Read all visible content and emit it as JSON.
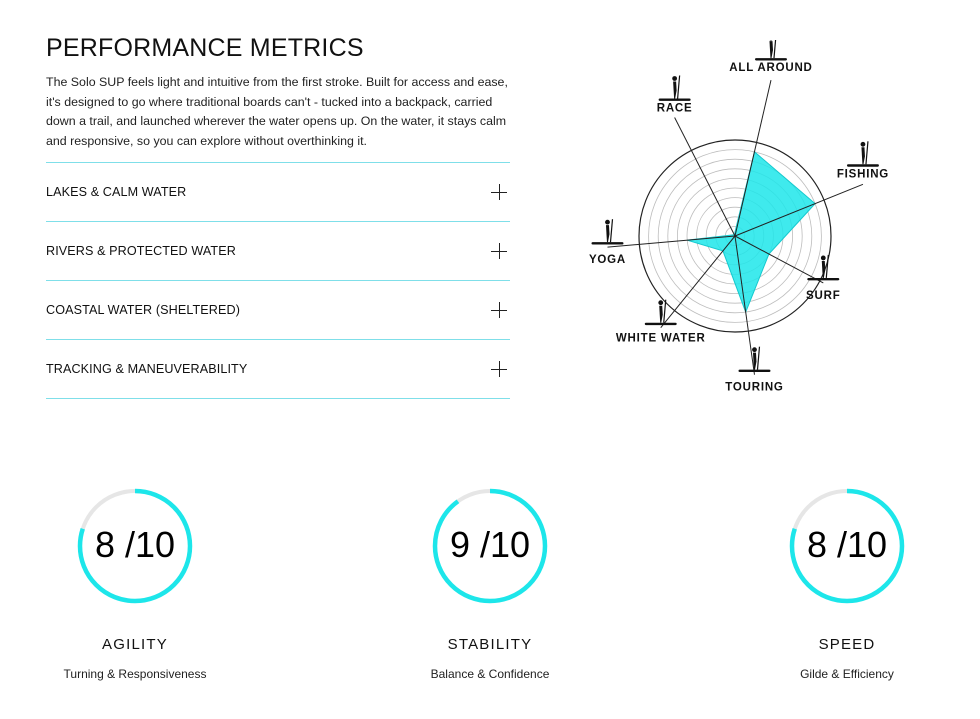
{
  "section": {
    "title": "PERFORMANCE METRICS",
    "intro": "The Solo SUP feels light and intuitive from the first stroke. Built for access and ease, it's designed to go where traditional boards can't - tucked into a backpack, carried down a trail, and launched wherever the water opens up. On the water, it stays calm and responsive, so you can explore without overthinking it."
  },
  "accordion": {
    "items": [
      {
        "label": "LAKES & CALM WATER"
      },
      {
        "label": "RIVERS & PROTECTED WATER"
      },
      {
        "label": "COASTAL WATER (SHELTERED)"
      },
      {
        "label": "TRACKING & MANEUVERABILITY"
      }
    ]
  },
  "radar": {
    "max": 10,
    "accent": "#1de6ea",
    "axes": [
      {
        "label": "ALL AROUND",
        "value": 9,
        "icon": "all-around-paddler-icon"
      },
      {
        "label": "FISHING",
        "value": 9,
        "icon": "fishing-icon"
      },
      {
        "label": "SURF",
        "value": 4,
        "icon": "surf-icon"
      },
      {
        "label": "TOURING",
        "value": 8,
        "icon": "touring-paddler-icon"
      },
      {
        "label": "WHITE WATER",
        "value": 2,
        "icon": "white-water-icon"
      },
      {
        "label": "YOGA",
        "value": 5,
        "icon": "yoga-icon"
      },
      {
        "label": "RACE",
        "value": 0,
        "icon": "race-paddler-icon"
      }
    ]
  },
  "metrics": [
    {
      "score": "8 /10",
      "value": 8,
      "name": "AGILITY",
      "desc": "Turning & Responsiveness"
    },
    {
      "score": "9 /10",
      "value": 9,
      "name": "STABILITY",
      "desc": "Balance & Confidence"
    },
    {
      "score": "8 /10",
      "value": 8,
      "name": "SPEED",
      "desc": "Gilde & Efficiency"
    }
  ],
  "colors": {
    "accent": "#1de6ea",
    "track": "#e6e6e6",
    "divider": "#7fdfe9"
  }
}
